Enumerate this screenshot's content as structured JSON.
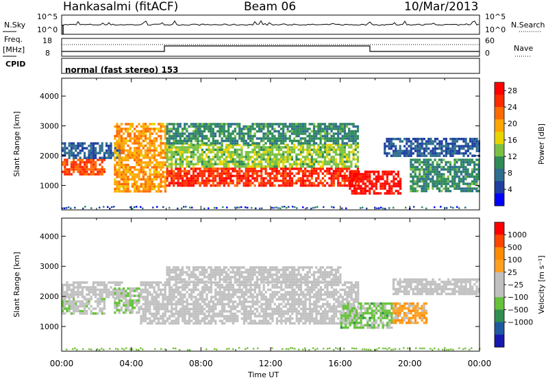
{
  "header": {
    "radar": "Hankasalmi (fitACF)",
    "beam": "Beam 06",
    "date": "10/Mar/2013"
  },
  "top_panels": {
    "nsky_label": "N.Sky",
    "nsky_ticks": [
      "10^5",
      "10^0"
    ],
    "nsearch_label": "N.Search",
    "nsearch_ticks": [
      "10^5",
      "10^0"
    ],
    "freq_label": "Freq.",
    "freq_unit": "[MHz]",
    "freq_ticks": [
      "18",
      "8"
    ],
    "nave_label": "Nave",
    "nave_ticks": [
      "60",
      "0"
    ],
    "cpid_label": "CPID",
    "cpid_text": "normal (fast stereo) 153"
  },
  "x_axis": {
    "label": "Time UT",
    "ticks": [
      "00:00",
      "04:00",
      "08:00",
      "12:00",
      "16:00",
      "20:00",
      "00:00"
    ]
  },
  "colors": {
    "power": [
      "#0000ff",
      "#1e3fa0",
      "#2e6e8e",
      "#2e8b57",
      "#7ac143",
      "#e8d400",
      "#ffa500",
      "#ff6a00",
      "#ff2a00",
      "#ff0000"
    ],
    "velocity": [
      "#1818b0",
      "#1e5aa0",
      "#2f8f4f",
      "#66c23a",
      "#c0c0c0",
      "#c0c0c0",
      "#ffa020",
      "#ff8a00",
      "#ff4400",
      "#ff0000"
    ]
  },
  "chart_data": [
    {
      "type": "heatmap",
      "title": "",
      "ylabel": "Slant Range [km]",
      "ylim": [
        180,
        4600
      ],
      "xlim": [
        0,
        24
      ],
      "yticks": [
        "1000",
        "2000",
        "3000",
        "4000"
      ],
      "colorbar_label": "Power [dB]",
      "colorbar_ticks": [
        "4",
        "8",
        "12",
        "16",
        "20",
        "24",
        "28"
      ],
      "colorbar_range": [
        0,
        30
      ],
      "bands": [
        {
          "t": [
            0,
            2.5
          ],
          "r": [
            1400,
            1900
          ],
          "value": 24
        },
        {
          "t": [
            0,
            3.5
          ],
          "r": [
            1900,
            2450
          ],
          "value": 6
        },
        {
          "t": [
            3,
            6
          ],
          "r": [
            800,
            3100
          ],
          "value": 20
        },
        {
          "t": [
            6,
            17
          ],
          "r": [
            1000,
            1600
          ],
          "value": 26
        },
        {
          "t": [
            6,
            17
          ],
          "r": [
            1600,
            2400
          ],
          "value": 14
        },
        {
          "t": [
            6,
            17
          ],
          "r": [
            2400,
            3100
          ],
          "value": 10
        },
        {
          "t": [
            16.5,
            19.5
          ],
          "r": [
            700,
            1500
          ],
          "value": 28
        },
        {
          "t": [
            18.5,
            24
          ],
          "r": [
            2000,
            2600
          ],
          "value": 6
        },
        {
          "t": [
            20,
            24
          ],
          "r": [
            800,
            1900
          ],
          "value": 10
        }
      ]
    },
    {
      "type": "heatmap",
      "title": "",
      "ylabel": "Slant Range [km]",
      "ylim": [
        180,
        4600
      ],
      "xlim": [
        0,
        24
      ],
      "yticks": [
        "1000",
        "2000",
        "3000",
        "4000"
      ],
      "colorbar_label": "Velocity [m s⁻¹]",
      "colorbar_ticks": [
        "1000",
        "500",
        "100",
        "25",
        "−25",
        "−100",
        "−500",
        "−1000"
      ],
      "colorbar_range": [
        -1250,
        1250
      ],
      "bands": [
        {
          "t": [
            0,
            2.5
          ],
          "r": [
            1400,
            1950
          ],
          "value": -150
        },
        {
          "t": [
            0,
            3.5
          ],
          "r": [
            2000,
            2500
          ],
          "value": 0
        },
        {
          "t": [
            3,
            4.5
          ],
          "r": [
            1500,
            2300
          ],
          "value": -200
        },
        {
          "t": [
            4.5,
            17
          ],
          "r": [
            1100,
            2500
          ],
          "value": 0
        },
        {
          "t": [
            6,
            16
          ],
          "r": [
            2500,
            3000
          ],
          "value": 0
        },
        {
          "t": [
            16,
            19
          ],
          "r": [
            1000,
            1800
          ],
          "value": -300
        },
        {
          "t": [
            19,
            21
          ],
          "r": [
            1100,
            1800
          ],
          "value": 400
        },
        {
          "t": [
            19,
            24
          ],
          "r": [
            2100,
            2600
          ],
          "value": 0
        }
      ]
    }
  ]
}
